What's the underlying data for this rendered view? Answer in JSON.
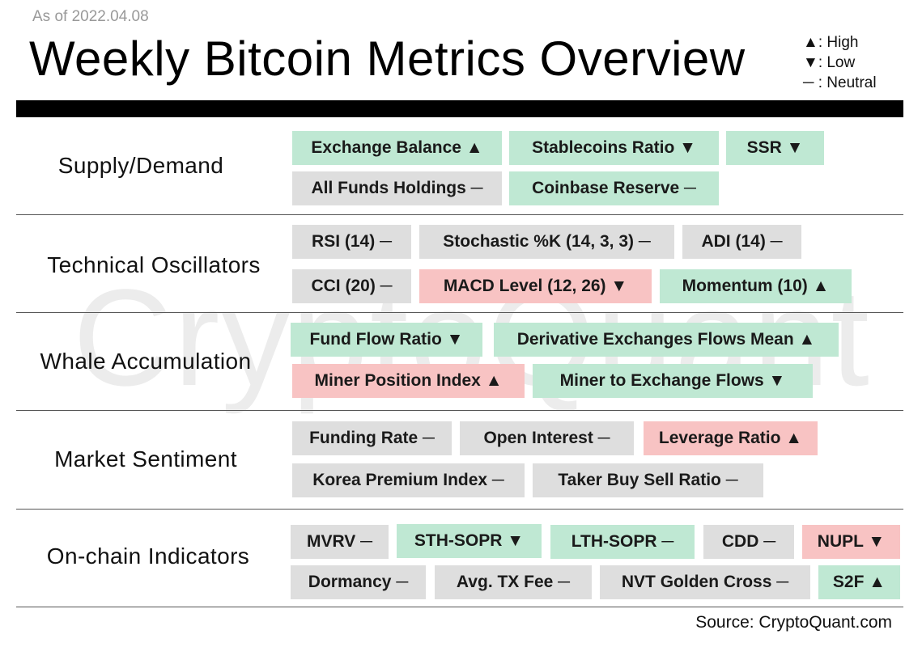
{
  "header": {
    "as_of": "As of 2022.04.08",
    "title": "Weekly Bitcoin Metrics Overview",
    "watermark": "CryptoQuant"
  },
  "legend": [
    {
      "symbol": "▲",
      "label": ": High"
    },
    {
      "symbol": "▼",
      "label": ": Low"
    },
    {
      "symbol": "─",
      "label": " : Neutral"
    }
  ],
  "colors": {
    "high_bg": "#bfe8d3",
    "low_bg": "#f8c3c3",
    "neutral_bg": "#dedede"
  },
  "sections": [
    {
      "label": "Supply/Demand",
      "chips": [
        {
          "text": "Exchange Balance ▲",
          "status": "high"
        },
        {
          "text": "Stablecoins Ratio ▼",
          "status": "high"
        },
        {
          "text": "SSR ▼",
          "status": "high"
        },
        {
          "text": "All Funds Holdings ─",
          "status": "neutral"
        },
        {
          "text": "Coinbase Reserve ─",
          "status": "high"
        }
      ]
    },
    {
      "label": "Technical Oscillators",
      "chips": [
        {
          "text": "RSI (14) ─",
          "status": "neutral"
        },
        {
          "text": "Stochastic %K (14, 3, 3) ─",
          "status": "neutral"
        },
        {
          "text": "ADI (14) ─",
          "status": "neutral"
        },
        {
          "text": "CCI (20) ─",
          "status": "neutral"
        },
        {
          "text": "MACD Level (12, 26) ▼",
          "status": "low"
        },
        {
          "text": "Momentum (10) ▲",
          "status": "high"
        }
      ]
    },
    {
      "label": "Whale Accumulation",
      "chips": [
        {
          "text": "Fund Flow Ratio ▼",
          "status": "high"
        },
        {
          "text": "Derivative Exchanges Flows Mean ▲",
          "status": "high"
        },
        {
          "text": "Miner Position Index ▲",
          "status": "low"
        },
        {
          "text": "Miner to Exchange Flows ▼",
          "status": "high"
        }
      ]
    },
    {
      "label": "Market Sentiment",
      "chips": [
        {
          "text": "Funding Rate ─",
          "status": "neutral"
        },
        {
          "text": "Open Interest ─",
          "status": "neutral"
        },
        {
          "text": "Leverage Ratio ▲",
          "status": "low"
        },
        {
          "text": "Korea Premium Index ─",
          "status": "neutral"
        },
        {
          "text": "Taker Buy Sell Ratio ─",
          "status": "neutral"
        }
      ]
    },
    {
      "label": "On-chain Indicators",
      "chips": [
        {
          "text": "MVRV ─",
          "status": "neutral"
        },
        {
          "text": "STH-SOPR ▼",
          "status": "high"
        },
        {
          "text": "LTH-SOPR ─",
          "status": "high"
        },
        {
          "text": "CDD ─",
          "status": "neutral"
        },
        {
          "text": "NUPL ▼",
          "status": "low"
        },
        {
          "text": "Dormancy ─",
          "status": "neutral"
        },
        {
          "text": "Avg. TX Fee ─",
          "status": "neutral"
        },
        {
          "text": "NVT Golden Cross ─",
          "status": "neutral"
        },
        {
          "text": "S2F ▲",
          "status": "high"
        }
      ]
    }
  ],
  "footer": {
    "source": "Source: CryptoQuant.com"
  }
}
